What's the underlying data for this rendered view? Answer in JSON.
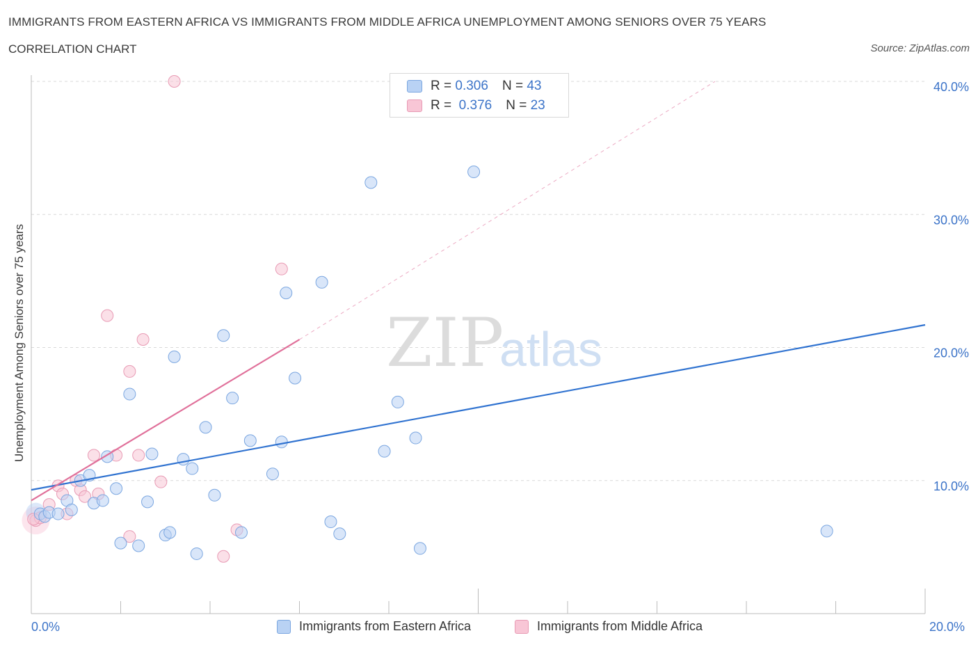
{
  "header": {
    "title": "IMMIGRANTS FROM EASTERN AFRICA VS IMMIGRANTS FROM MIDDLE AFRICA UNEMPLOYMENT AMONG SENIORS OVER 75 YEARS",
    "subtitle": "CORRELATION CHART",
    "source": "Source: ZipAtlas.com"
  },
  "legend": {
    "rows": [
      {
        "r_label": "R =",
        "r_value": "0.306",
        "n_label": "N =",
        "n_value": "43"
      },
      {
        "r_label": "R =",
        "r_value": "0.376",
        "n_label": "N =",
        "n_value": "23"
      }
    ]
  },
  "watermark": {
    "part1": "ZIP",
    "part2": "atlas"
  },
  "colors": {
    "series1_fill": "#b9d2f4",
    "series1_stroke": "#7aa6e0",
    "series1_line": "#2f72d0",
    "series2_fill": "#f8c6d6",
    "series2_stroke": "#e89ab4",
    "series2_line": "#e0709a",
    "axis_label": "#3b73c8",
    "grid": "#d9d9d9"
  },
  "chart_data": {
    "type": "scatter",
    "title": "IMMIGRANTS FROM EASTERN AFRICA VS IMMIGRANTS FROM MIDDLE AFRICA UNEMPLOYMENT AMONG SENIORS OVER 75 YEARS",
    "xlabel": "",
    "ylabel": "Unemployment Among Seniors over 75 years",
    "xlim": [
      0,
      20
    ],
    "ylim": [
      0,
      40
    ],
    "x_tick_labels": [
      "0.0%",
      "20.0%"
    ],
    "y_ticks": [
      10,
      20,
      30,
      40
    ],
    "y_tick_labels": [
      "10.0%",
      "20.0%",
      "30.0%",
      "40.0%"
    ],
    "grid": true,
    "series": [
      {
        "name": "Immigrants from Eastern Africa",
        "R": 0.306,
        "N": 43,
        "points": [
          [
            0.2,
            7.5
          ],
          [
            0.3,
            7.3
          ],
          [
            0.4,
            7.6
          ],
          [
            0.6,
            7.5
          ],
          [
            0.8,
            8.5
          ],
          [
            0.9,
            7.8
          ],
          [
            1.1,
            10.0
          ],
          [
            1.3,
            10.4
          ],
          [
            1.4,
            8.3
          ],
          [
            1.6,
            8.5
          ],
          [
            1.7,
            11.8
          ],
          [
            1.9,
            9.4
          ],
          [
            2.0,
            5.3
          ],
          [
            2.2,
            16.5
          ],
          [
            2.4,
            5.1
          ],
          [
            2.6,
            8.4
          ],
          [
            2.7,
            12.0
          ],
          [
            3.0,
            5.9
          ],
          [
            3.1,
            6.1
          ],
          [
            3.2,
            19.3
          ],
          [
            3.4,
            11.6
          ],
          [
            3.6,
            10.9
          ],
          [
            3.7,
            4.5
          ],
          [
            3.9,
            14.0
          ],
          [
            4.1,
            8.9
          ],
          [
            4.3,
            20.9
          ],
          [
            4.5,
            16.2
          ],
          [
            4.7,
            6.1
          ],
          [
            4.9,
            13.0
          ],
          [
            5.4,
            10.5
          ],
          [
            5.6,
            12.9
          ],
          [
            5.7,
            24.1
          ],
          [
            5.9,
            17.7
          ],
          [
            6.5,
            24.9
          ],
          [
            6.7,
            6.9
          ],
          [
            6.9,
            6.0
          ],
          [
            7.6,
            32.4
          ],
          [
            7.9,
            12.2
          ],
          [
            8.2,
            15.9
          ],
          [
            8.6,
            13.2
          ],
          [
            8.7,
            4.9
          ],
          [
            9.9,
            33.2
          ],
          [
            17.8,
            6.2
          ]
        ],
        "trend_line": {
          "x": [
            0,
            20
          ],
          "y": [
            9.3,
            21.7
          ]
        }
      },
      {
        "name": "Immigrants from Middle Africa",
        "R": 0.376,
        "N": 23,
        "points": [
          [
            0.1,
            7.0
          ],
          [
            0.2,
            7.2
          ],
          [
            0.4,
            8.2
          ],
          [
            0.6,
            9.6
          ],
          [
            0.7,
            9.0
          ],
          [
            0.8,
            7.5
          ],
          [
            1.0,
            10.0
          ],
          [
            1.1,
            9.3
          ],
          [
            1.2,
            8.8
          ],
          [
            1.4,
            11.9
          ],
          [
            1.5,
            9.0
          ],
          [
            1.7,
            22.4
          ],
          [
            1.9,
            11.9
          ],
          [
            2.2,
            18.2
          ],
          [
            2.2,
            5.8
          ],
          [
            2.4,
            11.9
          ],
          [
            2.5,
            20.6
          ],
          [
            2.9,
            9.9
          ],
          [
            3.2,
            40.0
          ],
          [
            4.3,
            4.3
          ],
          [
            4.6,
            6.3
          ],
          [
            5.6,
            25.9
          ],
          [
            0.05,
            7.1
          ]
        ],
        "trend_line": {
          "x": [
            0,
            6.0
          ],
          "y": [
            8.5,
            20.6
          ]
        },
        "trend_extension": {
          "x": [
            6.0,
            15.3
          ],
          "y": [
            20.6,
            40.0
          ]
        }
      }
    ]
  },
  "bottom_legend": {
    "series1": "Immigrants from Eastern Africa",
    "series2": "Immigrants from Middle Africa"
  }
}
